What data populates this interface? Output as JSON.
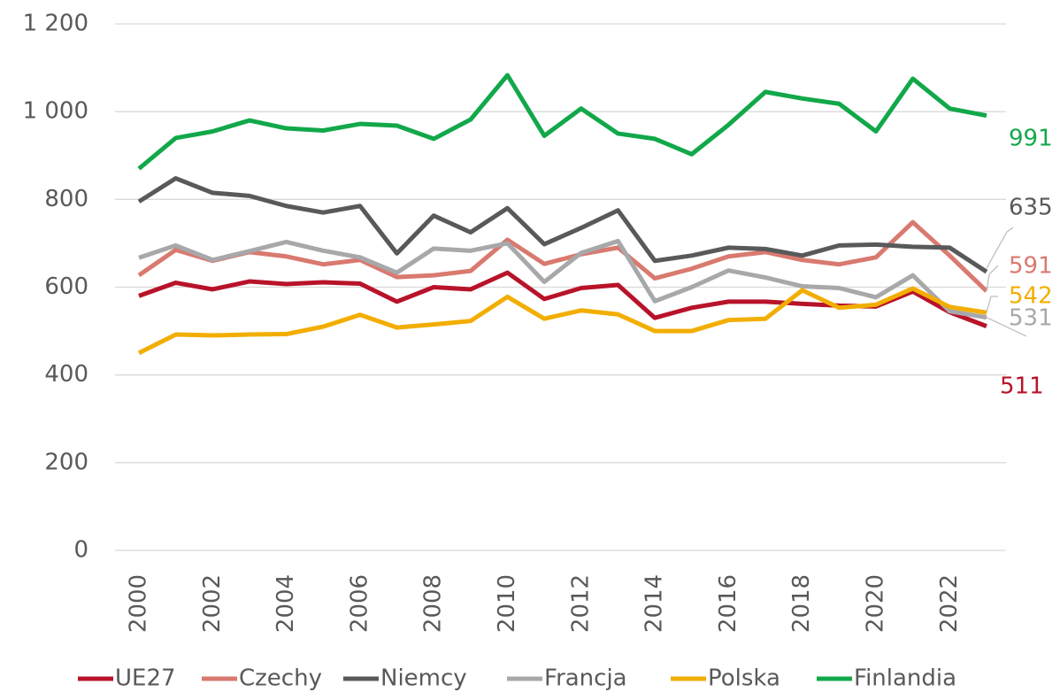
{
  "chart_data": {
    "type": "line",
    "categories": [
      "2000",
      null,
      "2002",
      null,
      "2004",
      null,
      "2006",
      null,
      "2008",
      null,
      "2010",
      null,
      "2012",
      null,
      "2014",
      null,
      "2016",
      null,
      "2018",
      null,
      "2020",
      null,
      "2022",
      null
    ],
    "ylim": [
      0,
      1200
    ],
    "yticks": [
      0,
      200,
      400,
      600,
      800,
      {
        "value": 1000,
        "label": "1 000"
      },
      {
        "value": 1200,
        "label": "1 200"
      }
    ],
    "grid": true,
    "legend": "bottom",
    "series": [
      {
        "name": "UE27",
        "color": "#b8132a",
        "values": [
          580,
          610,
          595,
          613,
          607,
          611,
          608,
          567,
          600,
          595,
          633,
          573,
          598,
          605,
          530,
          553,
          567,
          567,
          562,
          558,
          556,
          590,
          543,
          511
        ]
      },
      {
        "name": "Czechy",
        "color": "#d9796f",
        "values": [
          627,
          685,
          660,
          680,
          670,
          652,
          662,
          623,
          627,
          637,
          708,
          653,
          675,
          690,
          620,
          642,
          670,
          680,
          662,
          652,
          668,
          748,
          672,
          591
        ]
      },
      {
        "name": "Niemcy",
        "color": "#58595b",
        "values": [
          795,
          848,
          815,
          808,
          785,
          770,
          785,
          677,
          763,
          725,
          780,
          698,
          735,
          775,
          660,
          672,
          690,
          687,
          672,
          695,
          697,
          692,
          690,
          635
        ]
      },
      {
        "name": "Francja",
        "color": "#a7a8aa",
        "values": [
          667,
          695,
          662,
          682,
          703,
          683,
          668,
          633,
          688,
          683,
          700,
          612,
          678,
          705,
          568,
          600,
          638,
          622,
          602,
          598,
          577,
          627,
          545,
          531
        ]
      },
      {
        "name": "Polska",
        "color": "#f2ae00",
        "values": [
          450,
          492,
          490,
          492,
          493,
          510,
          537,
          508,
          515,
          523,
          578,
          528,
          547,
          538,
          500,
          500,
          525,
          528,
          593,
          553,
          560,
          597,
          555,
          542
        ]
      },
      {
        "name": "Finlandia",
        "color": "#12a84a",
        "values": [
          870,
          940,
          955,
          980,
          962,
          957,
          972,
          968,
          938,
          982,
          1083,
          945,
          1007,
          950,
          938,
          903,
          970,
          1045,
          1030,
          1018,
          955,
          1075,
          1007,
          991
        ]
      }
    ]
  }
}
